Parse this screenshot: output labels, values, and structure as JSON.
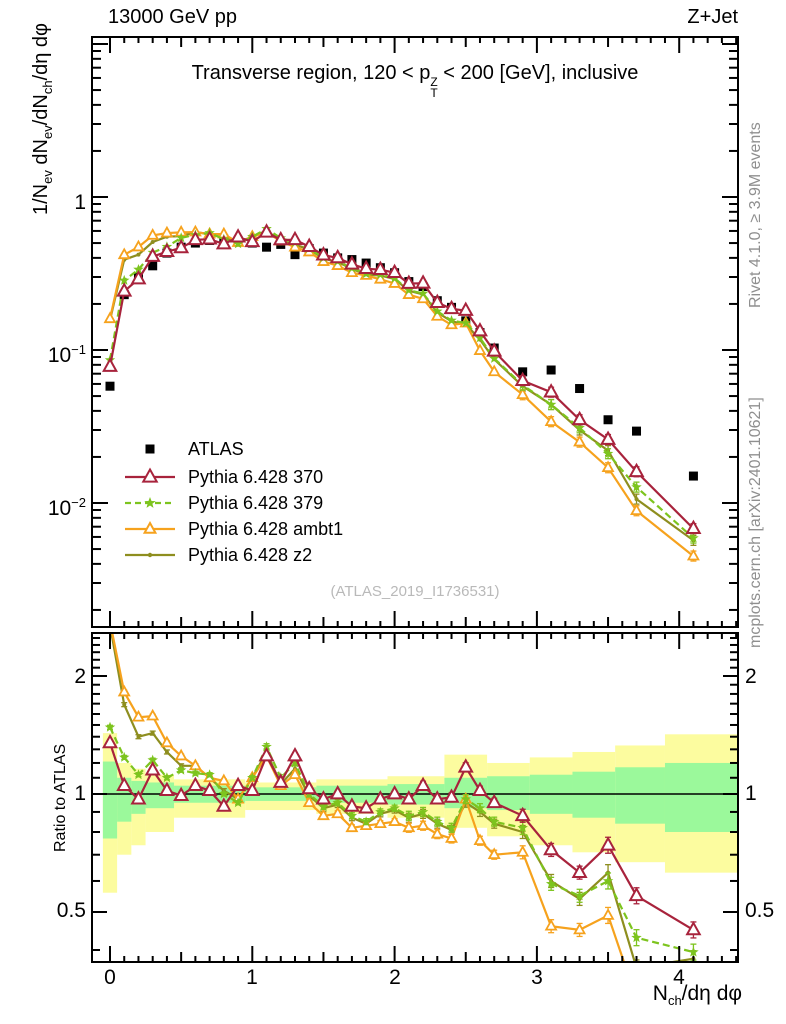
{
  "header": {
    "left": "13000 GeV pp",
    "right": "Z+Jet"
  },
  "panel_title": {
    "pre": "Transverse region, 120 < p",
    "sup": "Z",
    "sub": "T",
    "post": " < 200 [GeV], inclusive"
  },
  "watermark": "(ATLAS_2019_I1736531)",
  "side_notes": {
    "top": "Rivet 4.1.0, ≥ 3.9M events",
    "bottom": "mcplots.cern.ch [arXiv:2401.10621]"
  },
  "axes": {
    "main_y_label": {
      "p0": "1/N",
      "s0": "ev",
      "p1": " dN",
      "s1": "ev",
      "p2": "/dN",
      "s2": "ch",
      "p3": "/dη dφ"
    },
    "ratio_y_label": "Ratio to ATLAS",
    "x_label": {
      "p0": "N",
      "s0": "ch",
      "p1": "/dη dφ"
    },
    "main_y_ticks": [
      {
        "base": "1",
        "exp": ""
      },
      {
        "base": "10",
        "exp": "−1"
      },
      {
        "base": "10",
        "exp": "−2"
      }
    ],
    "ratio_y_ticks": [
      "2",
      "1",
      "0.5"
    ],
    "x_ticks": [
      "0",
      "1",
      "2",
      "3",
      "4"
    ]
  },
  "chart_data": {
    "type": "line",
    "title": "Transverse region, 120 < pT(Z) < 200 [GeV], inclusive",
    "xlabel": "Nch/dη dφ",
    "ylabel": "1/Nev dNev/dNch/dη dφ",
    "ylabel_ratio": "Ratio to ATLAS",
    "log_y": true,
    "x_range": [
      -0.1,
      4.41
    ],
    "y_range_main": [
      0.00155,
      11.1
    ],
    "y_range_ratio": [
      0.373,
      2.58
    ],
    "grid": false,
    "legend_position": "left-middle",
    "x": [
      0,
      0.1,
      0.2,
      0.3,
      0.4,
      0.5,
      0.6,
      0.7,
      0.8,
      0.9,
      1.0,
      1.1,
      1.2,
      1.3,
      1.4,
      1.5,
      1.6,
      1.7,
      1.8,
      1.9,
      2.0,
      2.1,
      2.2,
      2.3,
      2.4,
      2.5,
      2.6,
      2.7,
      2.9,
      3.1,
      3.3,
      3.5,
      3.7,
      4.1
    ],
    "reference": {
      "name": "ATLAS",
      "color": "#000000",
      "marker": "square",
      "values": [
        0.058,
        0.23,
        0.3,
        0.355,
        0.43,
        0.47,
        0.5,
        0.52,
        0.53,
        0.52,
        0.5,
        0.47,
        0.49,
        0.42,
        0.46,
        0.43,
        0.4,
        0.39,
        0.37,
        0.345,
        0.32,
        0.28,
        0.26,
        0.21,
        0.19,
        0.155,
        0.13,
        0.103,
        0.072,
        0.074,
        0.056,
        0.035,
        0.0295,
        0.015
      ]
    },
    "series": [
      {
        "name": "Pythia 6.428 370",
        "color": "#a8233c",
        "marker": "triangle-large",
        "line": "solid",
        "values": [
          0.078,
          0.242,
          0.291,
          0.408,
          0.439,
          0.465,
          0.525,
          0.53,
          0.493,
          0.546,
          0.51,
          0.588,
          0.524,
          0.525,
          0.474,
          0.417,
          0.4,
          0.363,
          0.34,
          0.335,
          0.32,
          0.272,
          0.273,
          0.204,
          0.186,
          0.181,
          0.133,
          0.098,
          0.063,
          0.053,
          0.035,
          0.026,
          0.016,
          0.0068
        ],
        "ratio": [
          1.35,
          1.05,
          0.97,
          1.15,
          1.02,
          0.99,
          1.05,
          1.02,
          0.93,
          1.05,
          1.02,
          1.25,
          1.07,
          1.25,
          1.03,
          0.97,
          1.0,
          0.93,
          0.92,
          0.97,
          1.0,
          0.97,
          1.05,
          0.97,
          0.98,
          1.17,
          1.02,
          0.95,
          0.88,
          0.72,
          0.63,
          0.74,
          0.55,
          0.45
        ]
      },
      {
        "name": "Pythia 6.428 379",
        "color": "#7dc41e",
        "marker": "star",
        "line": "dashed",
        "values": [
          0.086,
          0.285,
          0.336,
          0.433,
          0.473,
          0.541,
          0.565,
          0.582,
          0.53,
          0.494,
          0.55,
          0.62,
          0.539,
          0.504,
          0.46,
          0.4,
          0.38,
          0.343,
          0.315,
          0.311,
          0.294,
          0.246,
          0.234,
          0.179,
          0.156,
          0.15,
          0.12,
          0.088,
          0.059,
          0.044,
          0.031,
          0.021,
          0.0127,
          0.0059
        ],
        "ratio": [
          1.48,
          1.24,
          1.12,
          1.22,
          1.1,
          1.15,
          1.13,
          1.12,
          1.0,
          0.95,
          1.1,
          1.32,
          1.1,
          1.2,
          1.0,
          0.93,
          0.95,
          0.88,
          0.85,
          0.9,
          0.92,
          0.88,
          0.9,
          0.85,
          0.82,
          0.97,
          0.92,
          0.85,
          0.82,
          0.59,
          0.55,
          0.6,
          0.43,
          0.395
        ]
      },
      {
        "name": "Pythia 6.428 ambt1",
        "color": "#f6a21d",
        "marker": "triangle",
        "line": "solid",
        "values": [
          0.16,
          0.419,
          0.471,
          0.561,
          0.581,
          0.588,
          0.59,
          0.572,
          0.572,
          0.504,
          0.55,
          0.588,
          0.515,
          0.47,
          0.437,
          0.378,
          0.356,
          0.32,
          0.307,
          0.29,
          0.272,
          0.23,
          0.216,
          0.166,
          0.146,
          0.15,
          0.099,
          0.072,
          0.051,
          0.034,
          0.025,
          0.017,
          0.0089,
          0.0045
        ],
        "ratio": [
          2.75,
          1.82,
          1.57,
          1.58,
          1.35,
          1.25,
          1.18,
          1.1,
          1.08,
          0.97,
          1.1,
          1.25,
          1.05,
          1.12,
          0.95,
          0.88,
          0.89,
          0.82,
          0.83,
          0.84,
          0.85,
          0.82,
          0.83,
          0.79,
          0.77,
          0.97,
          0.76,
          0.7,
          0.71,
          0.46,
          0.45,
          0.49,
          0.3,
          0.3
        ]
      },
      {
        "name": "Pythia 6.428 z2",
        "color": "#8e8e1f",
        "marker": "dot",
        "line": "solid",
        "values": [
          0.157,
          0.389,
          0.42,
          0.508,
          0.55,
          0.555,
          0.59,
          0.572,
          0.541,
          0.504,
          0.55,
          0.602,
          0.519,
          0.487,
          0.455,
          0.396,
          0.376,
          0.339,
          0.311,
          0.307,
          0.291,
          0.244,
          0.231,
          0.176,
          0.154,
          0.147,
          0.117,
          0.087,
          0.058,
          0.044,
          0.03,
          0.022,
          0.0106,
          0.0057
        ],
        "ratio": [
          2.7,
          1.69,
          1.4,
          1.43,
          1.28,
          1.18,
          1.18,
          1.1,
          1.02,
          0.97,
          1.1,
          1.28,
          1.06,
          1.16,
          0.99,
          0.92,
          0.94,
          0.87,
          0.84,
          0.89,
          0.91,
          0.87,
          0.89,
          0.84,
          0.81,
          0.95,
          0.9,
          0.84,
          0.8,
          0.6,
          0.54,
          0.63,
          0.36,
          0.38
        ]
      }
    ],
    "ratio_bands": {
      "colors": {
        "inner": "#9bf99b",
        "outer": "#fcfc9f"
      },
      "segments": [
        {
          "x0": -0.05,
          "x1": 0.05,
          "green": [
            0.77,
            1.21
          ],
          "yellow": [
            0.56,
            1.43
          ]
        },
        {
          "x0": 0.05,
          "x1": 0.15,
          "green": [
            0.85,
            1.1
          ],
          "yellow": [
            0.7,
            1.2
          ]
        },
        {
          "x0": 0.15,
          "x1": 0.25,
          "green": [
            0.89,
            1.08
          ],
          "yellow": [
            0.74,
            1.16
          ]
        },
        {
          "x0": 0.25,
          "x1": 0.45,
          "green": [
            0.92,
            1.07
          ],
          "yellow": [
            0.8,
            1.12
          ]
        },
        {
          "x0": 0.45,
          "x1": 0.95,
          "green": [
            0.95,
            1.05
          ],
          "yellow": [
            0.87,
            1.09
          ]
        },
        {
          "x0": 0.95,
          "x1": 1.45,
          "green": [
            0.96,
            1.04
          ],
          "yellow": [
            0.91,
            1.07
          ]
        },
        {
          "x0": 1.45,
          "x1": 1.95,
          "green": [
            0.95,
            1.05
          ],
          "yellow": [
            0.89,
            1.09
          ]
        },
        {
          "x0": 1.95,
          "x1": 2.35,
          "green": [
            0.94,
            1.06
          ],
          "yellow": [
            0.87,
            1.11
          ]
        },
        {
          "x0": 2.35,
          "x1": 2.65,
          "green": [
            0.92,
            1.1
          ],
          "yellow": [
            0.82,
            1.26
          ]
        },
        {
          "x0": 2.65,
          "x1": 2.95,
          "green": [
            0.91,
            1.11
          ],
          "yellow": [
            0.78,
            1.2
          ]
        },
        {
          "x0": 2.95,
          "x1": 3.25,
          "green": [
            0.89,
            1.12
          ],
          "yellow": [
            0.74,
            1.24
          ]
        },
        {
          "x0": 3.25,
          "x1": 3.55,
          "green": [
            0.87,
            1.14
          ],
          "yellow": [
            0.71,
            1.28
          ]
        },
        {
          "x0": 3.55,
          "x1": 3.9,
          "green": [
            0.84,
            1.17
          ],
          "yellow": [
            0.67,
            1.33
          ]
        },
        {
          "x0": 3.9,
          "x1": 4.41,
          "green": [
            0.8,
            1.2
          ],
          "yellow": [
            0.63,
            1.42
          ]
        }
      ]
    }
  }
}
